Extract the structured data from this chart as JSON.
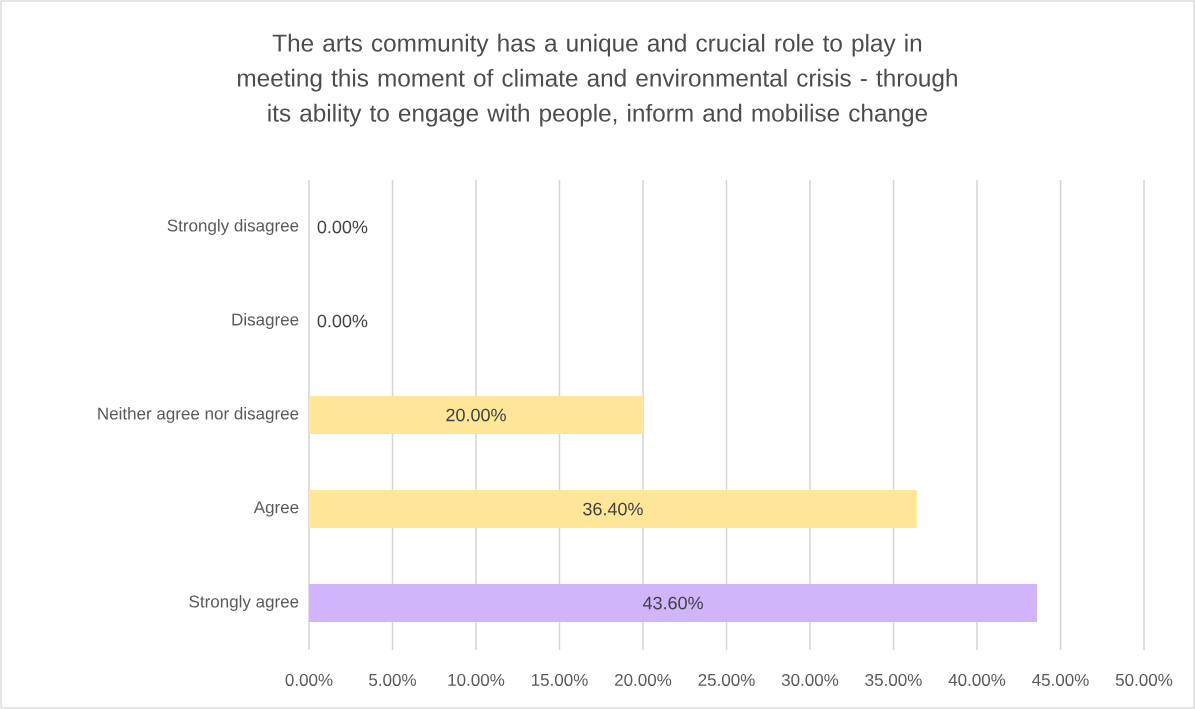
{
  "chart_data": {
    "type": "bar",
    "orientation": "horizontal",
    "title": "The arts community has a unique and crucial role to play in meeting this moment of climate and environmental crisis - through its ability to engage with people, inform and mobilise change",
    "categories": [
      "Strongly disagree",
      "Disagree",
      "Neither agree nor disagree",
      "Agree",
      "Strongly agree"
    ],
    "values": [
      0,
      0,
      20,
      36.4,
      43.6
    ],
    "colors": [
      "#ffe699",
      "#ffe699",
      "#ffe699",
      "#ffe699",
      "#d0b4fc"
    ],
    "value_labels": [
      "0.00%",
      "0.00%",
      "20.00%",
      "36.40%",
      "43.60%"
    ],
    "xlim": [
      0,
      50
    ],
    "xticks": [
      {
        "value": 0,
        "label": "0.00%"
      },
      {
        "value": 5,
        "label": "5.00%"
      },
      {
        "value": 10,
        "label": "10.00%"
      },
      {
        "value": 15,
        "label": "15.00%"
      },
      {
        "value": 20,
        "label": "20.00%"
      },
      {
        "value": 25,
        "label": "25.00%"
      },
      {
        "value": 30,
        "label": "30.00%"
      },
      {
        "value": 35,
        "label": "35.00%"
      },
      {
        "value": 40,
        "label": "40.00%"
      },
      {
        "value": 45,
        "label": "45.00%"
      },
      {
        "value": 50,
        "label": "50.00%"
      }
    ],
    "grid": "x"
  }
}
